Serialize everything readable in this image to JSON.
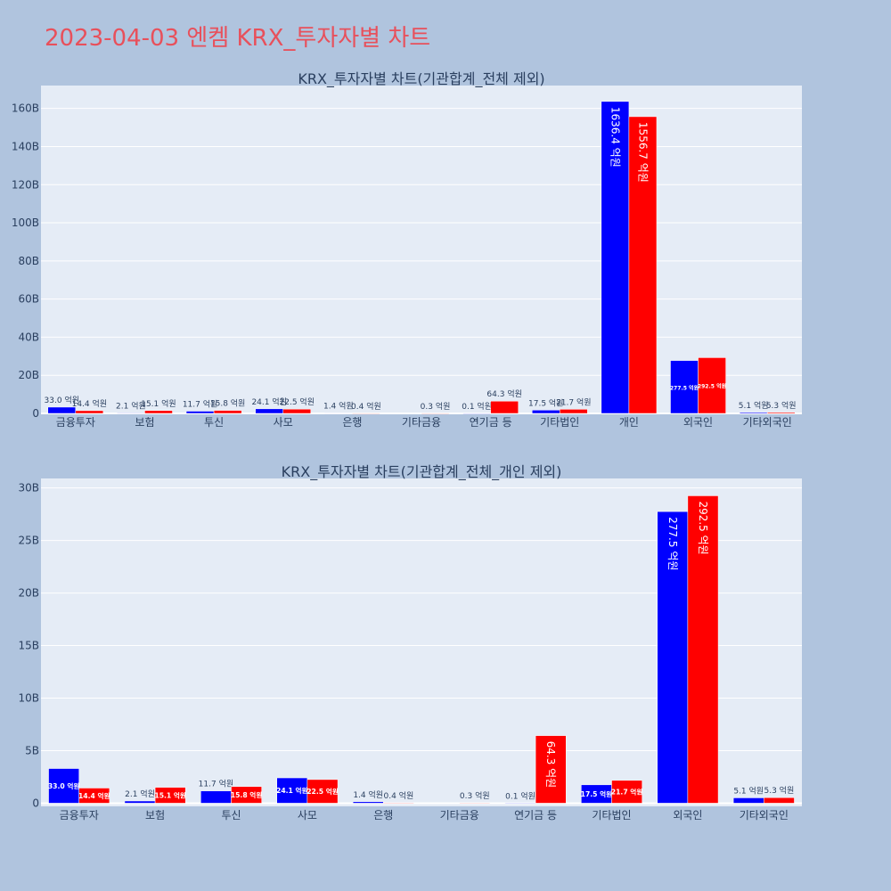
{
  "page": {
    "title": "2023-04-03 엔켐 KRX_투자자별 차트"
  },
  "colors": {
    "page_background": "#b0c4de",
    "plot_background": "#e5ecf6",
    "title": "#e8505b",
    "series_buy": "#0000ff",
    "series_sell": "#ff0000"
  },
  "chart_data": [
    {
      "type": "bar",
      "title": "KRX_투자자별 차트(기관합계_전체 제외)",
      "xlabel": "",
      "ylabel": "",
      "ylim": [
        0,
        172
      ],
      "y_unit": "B",
      "yticks": [
        0,
        20,
        40,
        60,
        80,
        100,
        120,
        140,
        160
      ],
      "ytick_labels": [
        "0",
        "20B",
        "40B",
        "60B",
        "80B",
        "100B",
        "120B",
        "140B",
        "160B"
      ],
      "grid": true,
      "legend": "none",
      "categories": [
        "금융투자",
        "보험",
        "투신",
        "사모",
        "은행",
        "기타금융",
        "연기금 등",
        "기타법인",
        "개인",
        "외국인",
        "기타외국인"
      ],
      "series": [
        {
          "color": "#0000ff",
          "values": [
            3.3,
            0.21,
            1.17,
            2.41,
            0.14,
            null,
            0.01,
            1.75,
            163.64,
            27.75,
            0.51
          ],
          "labels": [
            "33.0 억원",
            "2.1 억원",
            "11.7 억원",
            "24.1 억원",
            "1.4 억원",
            "",
            "0.1 억원",
            "17.5 억원",
            "1636.4 억원",
            "277.5 억원",
            "5.1 억원"
          ]
        },
        {
          "color": "#ff0000",
          "values": [
            1.44,
            1.51,
            1.58,
            2.25,
            0.04,
            0.03,
            6.43,
            2.17,
            155.67,
            29.25,
            0.53
          ],
          "labels": [
            "14.4 억원",
            "15.1 억원",
            "15.8 억원",
            "22.5 억원",
            "0.4 억원",
            "0.3 억원",
            "64.3 억원",
            "21.7 억원",
            "1556.7 억원",
            "292.5 억원",
            "5.3 억원"
          ]
        }
      ]
    },
    {
      "type": "bar",
      "title": "KRX_투자자별 차트(기관합계_전체_개인 제외)",
      "xlabel": "",
      "ylabel": "",
      "ylim": [
        -0.3,
        30.9
      ],
      "y_unit": "B",
      "yticks": [
        0,
        5,
        10,
        15,
        20,
        25,
        30
      ],
      "ytick_labels": [
        "0",
        "5B",
        "10B",
        "15B",
        "20B",
        "25B",
        "30B"
      ],
      "grid": true,
      "legend": "none",
      "categories": [
        "금융투자",
        "보험",
        "투신",
        "사모",
        "은행",
        "기타금융",
        "연기금 등",
        "기타법인",
        "외국인",
        "기타외국인"
      ],
      "series": [
        {
          "color": "#0000ff",
          "values": [
            3.3,
            0.21,
            1.17,
            2.41,
            0.14,
            null,
            0.01,
            1.75,
            27.75,
            0.51
          ],
          "labels": [
            "33.0 억원",
            "2.1 억원",
            "11.7 억원",
            "24.1 억원",
            "1.4 억원",
            "",
            "0.1 억원",
            "17.5 억원",
            "277.5 억원",
            "5.1 억원"
          ]
        },
        {
          "color": "#ff0000",
          "values": [
            1.44,
            1.51,
            1.58,
            2.25,
            0.04,
            0.03,
            6.43,
            2.17,
            29.25,
            0.53
          ],
          "labels": [
            "14.4 억원",
            "15.1 억원",
            "15.8 억원",
            "22.5 억원",
            "0.4 억원",
            "0.3 억원",
            "64.3 억원",
            "21.7 억원",
            "292.5 억원",
            "5.3 억원"
          ]
        }
      ]
    }
  ]
}
